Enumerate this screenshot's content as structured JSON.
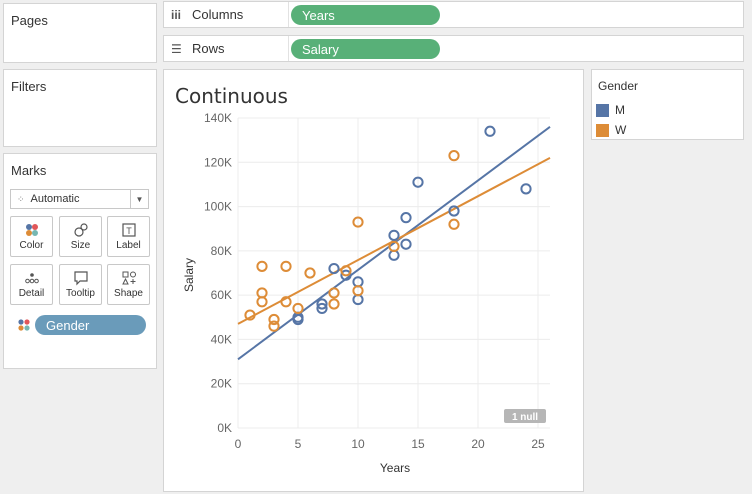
{
  "panels": {
    "pages_title": "Pages",
    "filters_title": "Filters",
    "marks_title": "Marks"
  },
  "shelves": {
    "columns_label": "Columns",
    "columns_pill": "Years",
    "rows_label": "Rows",
    "rows_pill": "Salary"
  },
  "marks": {
    "mark_type": "Automatic",
    "buttons": [
      {
        "label": "Color",
        "icon": "color-icon"
      },
      {
        "label": "Size",
        "icon": "size-icon"
      },
      {
        "label": "Label",
        "icon": "label-icon"
      },
      {
        "label": "Detail",
        "icon": "detail-icon"
      },
      {
        "label": "Tooltip",
        "icon": "tooltip-icon"
      },
      {
        "label": "Shape",
        "icon": "shape-icon"
      }
    ],
    "field_pill": "Gender",
    "field_pill_color": "#6a9bba"
  },
  "legend": {
    "title": "Gender",
    "items": [
      {
        "label": "M",
        "color": "#5675a6"
      },
      {
        "label": "W",
        "color": "#dd8c37"
      }
    ]
  },
  "null_indicator": "1 null",
  "chart_data": {
    "type": "scatter",
    "title": "Continuous",
    "xlabel": "Years",
    "ylabel": "Salary",
    "xlim": [
      0,
      26
    ],
    "ylim": [
      0,
      140000
    ],
    "x_ticks": [
      0,
      5,
      10,
      15,
      20,
      25
    ],
    "x_tick_labels": [
      "0",
      "5",
      "10",
      "15",
      "20",
      "25"
    ],
    "y_ticks": [
      0,
      20000,
      40000,
      60000,
      80000,
      100000,
      120000,
      140000
    ],
    "y_tick_labels": [
      "0K",
      "20K",
      "40K",
      "60K",
      "80K",
      "100K",
      "120K",
      "140K"
    ],
    "grid": true,
    "legend_position": "right",
    "series": [
      {
        "name": "M",
        "color": "#5675a6",
        "points": [
          [
            5,
            49000
          ],
          [
            5,
            50000
          ],
          [
            7,
            54000
          ],
          [
            7,
            56000
          ],
          [
            8,
            72000
          ],
          [
            9,
            69000
          ],
          [
            10,
            66000
          ],
          [
            10,
            58000
          ],
          [
            13,
            87000
          ],
          [
            13,
            78000
          ],
          [
            14,
            95000
          ],
          [
            14,
            83000
          ],
          [
            15,
            111000
          ],
          [
            18,
            98000
          ],
          [
            21,
            134000
          ],
          [
            24,
            108000
          ]
        ],
        "trend": [
          [
            0,
            31000
          ],
          [
            26,
            136000
          ]
        ]
      },
      {
        "name": "W",
        "color": "#dd8c37",
        "points": [
          [
            1,
            51000
          ],
          [
            2,
            73000
          ],
          [
            2,
            61000
          ],
          [
            2,
            57000
          ],
          [
            3,
            49000
          ],
          [
            3,
            46000
          ],
          [
            4,
            73000
          ],
          [
            4,
            57000
          ],
          [
            5,
            54000
          ],
          [
            6,
            70000
          ],
          [
            8,
            61000
          ],
          [
            8,
            56000
          ],
          [
            9,
            71000
          ],
          [
            10,
            93000
          ],
          [
            10,
            62000
          ],
          [
            13,
            82000
          ],
          [
            18,
            123000
          ],
          [
            18,
            92000
          ]
        ],
        "trend": [
          [
            0,
            47000
          ],
          [
            26,
            122000
          ]
        ]
      }
    ]
  }
}
